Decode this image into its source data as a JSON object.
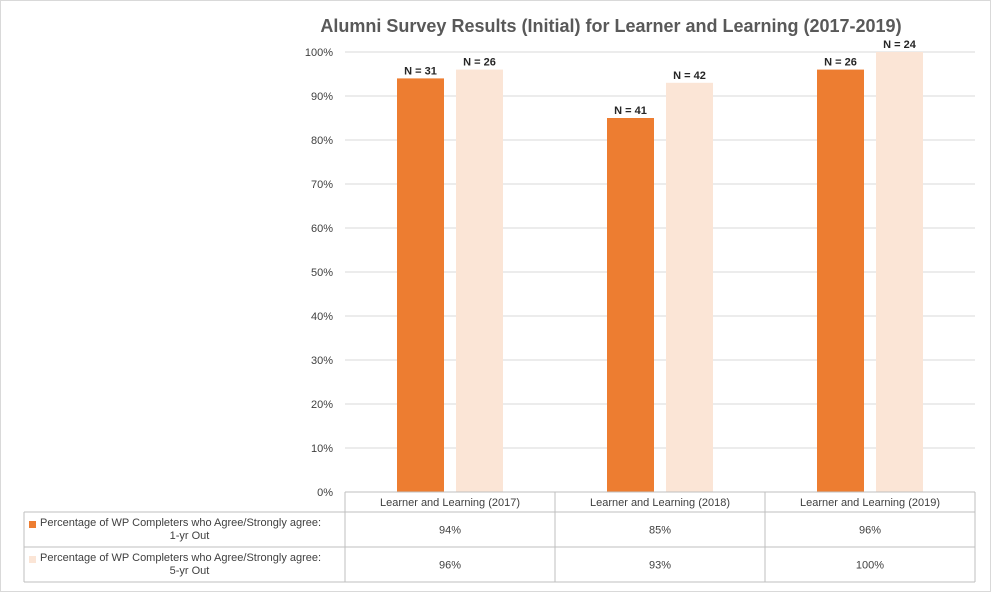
{
  "chart_data": {
    "type": "bar",
    "title": "Alumni Survey Results (Initial) for Learner and Learning (2017-2019)",
    "categories": [
      "Learner and Learning (2017)",
      "Learner and Learning (2018)",
      "Learner and Learning (2019)"
    ],
    "ylim": [
      0,
      100
    ],
    "y_ticks": [
      "0%",
      "10%",
      "20%",
      "30%",
      "40%",
      "50%",
      "60%",
      "70%",
      "80%",
      "90%",
      "100%"
    ],
    "grid": true,
    "legend": "data-table",
    "series": [
      {
        "name": "Percentage of WP Completers who Agree/Strongly agree: 1-yr Out",
        "legend_lines": [
          "Percentage of WP Completers who Agree/Strongly agree:",
          "1-yr Out"
        ],
        "color": "#ED7D31",
        "values": [
          94,
          85,
          96
        ],
        "table_values": [
          "94%",
          "85%",
          "96%"
        ],
        "data_labels": [
          "N = 31",
          "N = 41",
          "N = 26"
        ]
      },
      {
        "name": "Percentage of WP Completers who Agree/Strongly agree: 5-yr Out",
        "legend_lines": [
          "Percentage of WP Completers who Agree/Strongly agree:",
          "5-yr Out"
        ],
        "color": "#FBE5D6",
        "values": [
          96,
          93,
          100
        ],
        "table_values": [
          "96%",
          "93%",
          "100%"
        ],
        "data_labels": [
          "N = 26",
          "N = 42",
          "N = 24"
        ]
      }
    ]
  }
}
